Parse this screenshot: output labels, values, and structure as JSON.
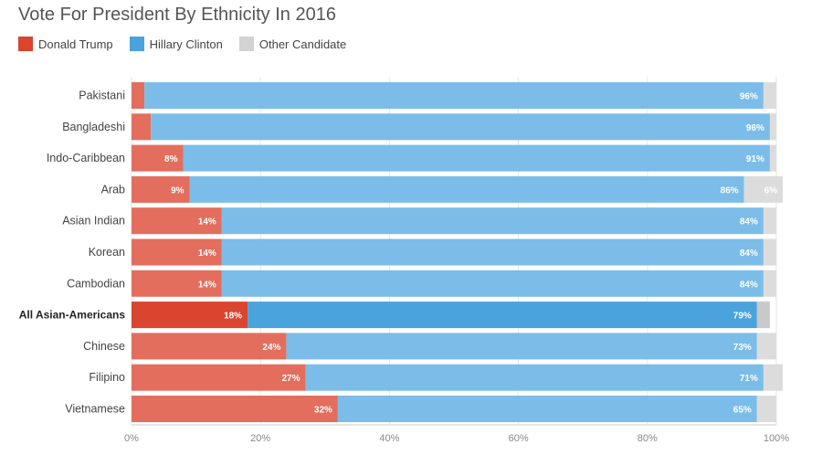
{
  "chart_data": {
    "type": "bar",
    "orientation": "horizontal",
    "stacked": true,
    "title": "Vote For President By Ethnicity In 2016",
    "categories": [
      "Pakistani",
      "Bangladeshi",
      "Indo-Caribbean",
      "Arab",
      "Asian Indian",
      "Korean",
      "Cambodian",
      "All Asian-Americans",
      "Chinese",
      "Filipino",
      "Vietnamese"
    ],
    "highlight_category": "All Asian-Americans",
    "series": [
      {
        "name": "Donald Trump",
        "color": "#e36e5d",
        "highlight_color": "#d9452f",
        "values": [
          2,
          3,
          8,
          9,
          14,
          14,
          14,
          18,
          24,
          27,
          32
        ],
        "labels": [
          "",
          "",
          "8%",
          "9%",
          "14%",
          "14%",
          "14%",
          "18%",
          "24%",
          "27%",
          "32%"
        ]
      },
      {
        "name": "Hillary Clinton",
        "color": "#7bbde8",
        "highlight_color": "#4aa3dc",
        "values": [
          96,
          96,
          91,
          86,
          84,
          84,
          84,
          79,
          73,
          71,
          65
        ],
        "labels": [
          "96%",
          "96%",
          "91%",
          "86%",
          "84%",
          "84%",
          "84%",
          "79%",
          "73%",
          "71%",
          "65%"
        ]
      },
      {
        "name": "Other Candidate",
        "color": "#dcdcdc",
        "highlight_color": "#c9c9c9",
        "values": [
          2,
          1,
          1,
          6,
          2,
          2,
          2,
          2,
          3,
          3,
          3
        ],
        "labels": [
          "",
          "",
          "",
          "6%",
          "",
          "",
          "",
          "",
          "",
          "",
          ""
        ]
      }
    ],
    "xlim": [
      0,
      100
    ],
    "xticks": [
      "0%",
      "20%",
      "40%",
      "60%",
      "80%",
      "100%"
    ],
    "xtick_values": [
      0,
      20,
      40,
      60,
      80,
      100
    ],
    "grid": true,
    "legend_position": "top-left"
  }
}
